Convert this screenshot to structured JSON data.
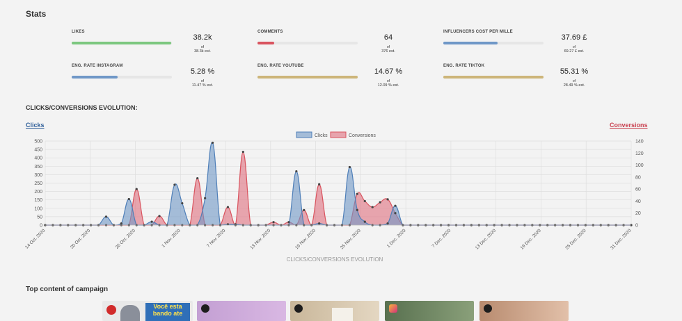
{
  "stats": {
    "title": "Stats",
    "items": [
      {
        "label": "LIKES",
        "value": "38.2k",
        "of": "of",
        "est": "38.3k est.",
        "fill": 0.99,
        "color": "#7cc77f"
      },
      {
        "label": "COMMENTS",
        "value": "64",
        "of": "of",
        "est": "376 est.",
        "fill": 0.17,
        "color": "#d9545f"
      },
      {
        "label": "INFLUENCERS COST PER MILLE",
        "value": "37.69 £",
        "of": "of",
        "est": "69.27 £ est.",
        "fill": 0.54,
        "color": "#6f97c7"
      },
      {
        "label": "ENG. RATE INSTAGRAM",
        "value": "5.28 %",
        "of": "of",
        "est": "11.47 % est.",
        "fill": 0.46,
        "color": "#6f97c7"
      },
      {
        "label": "ENG. RATE YOUTUBE",
        "value": "14.67 %",
        "of": "of",
        "est": "12.09 % est.",
        "fill": 1.0,
        "color": "#cdb579"
      },
      {
        "label": "ENG. RATE TIKTOK",
        "value": "55.31 %",
        "of": "of",
        "est": "28.49 % est.",
        "fill": 1.0,
        "color": "#cdb579"
      }
    ]
  },
  "evolution": {
    "title": "CLICKS/CONVERSIONS EVOLUTION:",
    "clicks_link": "Clicks",
    "conversions_link": "Conversions",
    "clicks_color": "#2f5f9a",
    "conversions_color": "#c9404f"
  },
  "chart_data": {
    "type": "area",
    "title": "",
    "xlabel": "CLICKS/CONVERSIONS EVOLUTION",
    "y_left": {
      "ticks": [
        0,
        50,
        100,
        150,
        200,
        250,
        300,
        350,
        400,
        450,
        500
      ],
      "range": [
        0,
        500
      ]
    },
    "y_right": {
      "ticks": [
        0,
        20,
        40,
        60,
        80,
        100,
        120,
        140
      ],
      "range": [
        0,
        140
      ]
    },
    "x_tick_labels": [
      "14 Oct. 2020",
      "20 Oct. 2020",
      "26 Oct. 2020",
      "1 Nov. 2020",
      "7 Nov. 2020",
      "13 Nov. 2020",
      "19 Nov. 2020",
      "25 Nov. 2020",
      "1 Dec. 2020",
      "7 Dec. 2020",
      "13 Dec. 2020",
      "19 Dec. 2020",
      "25 Dec. 2020",
      "31 Dec. 2020"
    ],
    "x_start": "2020-10-14",
    "x_end": "2020-12-31",
    "legend_position": "top-center",
    "grid": true,
    "series": [
      {
        "name": "Clicks",
        "axis": "left",
        "color": "#6f97c7",
        "values": [
          0,
          0,
          0,
          0,
          0,
          0,
          0,
          0,
          50,
          0,
          10,
          155,
          0,
          0,
          20,
          0,
          0,
          240,
          130,
          0,
          0,
          160,
          490,
          0,
          5,
          5,
          0,
          0,
          0,
          0,
          0,
          0,
          0,
          320,
          0,
          0,
          10,
          0,
          0,
          0,
          345,
          90,
          20,
          0,
          0,
          10,
          115,
          0,
          0,
          0,
          0,
          0,
          0,
          0,
          0,
          0,
          0,
          0,
          0,
          0,
          0,
          0,
          0,
          0,
          0,
          0,
          0,
          0,
          0,
          0,
          0,
          0,
          0,
          0,
          0,
          0,
          0,
          0
        ]
      },
      {
        "name": "Conversions",
        "axis": "right",
        "color": "#e07a87",
        "values": [
          0,
          0,
          0,
          0,
          0,
          0,
          0,
          0,
          0,
          0,
          0,
          0,
          60,
          0,
          0,
          15,
          0,
          0,
          0,
          0,
          78,
          0,
          0,
          0,
          30,
          0,
          122,
          0,
          0,
          0,
          5,
          0,
          5,
          0,
          25,
          0,
          68,
          0,
          0,
          0,
          0,
          52,
          40,
          30,
          38,
          43,
          20,
          0,
          0,
          0,
          0,
          0,
          0,
          0,
          0,
          0,
          0,
          0,
          0,
          0,
          0,
          0,
          0,
          0,
          0,
          0,
          0,
          0,
          0,
          0,
          0,
          0,
          0,
          0,
          0,
          0,
          0,
          0
        ]
      }
    ]
  },
  "top_content": {
    "title": "Top content of campaign",
    "items": [
      {
        "platform": "youtube-icon",
        "caption": "Você esta bando ate"
      },
      {
        "platform": "tiktok-icon",
        "caption": ""
      },
      {
        "platform": "tiktok-icon",
        "caption": ""
      },
      {
        "platform": "instagram-icon",
        "caption": ""
      },
      {
        "platform": "tiktok-icon",
        "caption": ""
      }
    ]
  }
}
